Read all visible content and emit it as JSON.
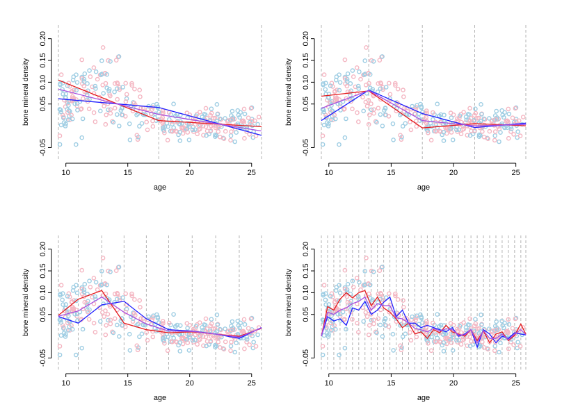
{
  "figure": {
    "layout": "2x2 grid of scatter panels with regression-spline fits",
    "point_style": "open circle",
    "colors": {
      "points_group_1": "#f4b6c2",
      "points_group_2": "#9ecde3",
      "fit_red": "#e41a1c",
      "fit_blue": "#1f1fff",
      "fit_purple": "#a84fe0",
      "knot_line": "#b3b3b3"
    },
    "xlim": [
      9.4,
      25.8
    ],
    "ylim": [
      -0.07,
      0.225
    ],
    "xticks": [
      10,
      15,
      20,
      25
    ],
    "yticks": [
      -0.05,
      0.05,
      0.1,
      0.15,
      0.2
    ],
    "xlabel": "age",
    "ylabel": "bone mineral density"
  },
  "chart_data": [
    {
      "type": "scatter",
      "panel": 1,
      "xlabel": "age",
      "ylabel": "bone mineral density",
      "knots": [
        9.4,
        17.5,
        25.8
      ],
      "series": [
        {
          "color": "red",
          "x": [
            9.4,
            17.5,
            25.8
          ],
          "y": [
            0.105,
            0.012,
            -0.002
          ]
        },
        {
          "color": "blue",
          "x": [
            9.4,
            17.5,
            25.8
          ],
          "y": [
            0.062,
            0.042,
            -0.022
          ]
        },
        {
          "color": "purple",
          "x": [
            9.4,
            17.5,
            25.8
          ],
          "y": [
            0.084,
            0.026,
            -0.012
          ]
        }
      ]
    },
    {
      "type": "scatter",
      "panel": 2,
      "xlabel": "age",
      "ylabel": "bone mineral density",
      "knots": [
        9.4,
        13.2,
        17.5,
        21.7,
        25.8
      ],
      "series": [
        {
          "color": "red",
          "x": [
            9.4,
            13.2,
            17.5,
            21.7,
            25.8
          ],
          "y": [
            0.068,
            0.08,
            -0.005,
            0.005,
            0.0
          ]
        },
        {
          "color": "blue",
          "x": [
            9.4,
            13.2,
            17.5,
            21.7,
            25.8
          ],
          "y": [
            0.012,
            0.082,
            0.028,
            -0.004,
            0.006
          ]
        },
        {
          "color": "purple",
          "x": [
            9.4,
            13.2,
            17.5,
            21.7,
            25.8
          ],
          "y": [
            0.04,
            0.081,
            0.012,
            0.0,
            0.003
          ]
        }
      ]
    },
    {
      "type": "scatter",
      "panel": 3,
      "xlabel": "age",
      "ylabel": "bone mineral density",
      "knots": [
        9.4,
        11.0,
        12.9,
        14.7,
        16.5,
        18.3,
        20.2,
        22.1,
        24.0,
        25.8
      ],
      "series": [
        {
          "color": "red",
          "x": [
            9.4,
            11.0,
            12.9,
            14.7,
            16.5,
            18.3,
            20.2,
            22.1,
            24.0,
            25.8
          ],
          "y": [
            0.048,
            0.085,
            0.105,
            0.03,
            0.015,
            0.008,
            0.01,
            0.005,
            0.0,
            0.018
          ]
        },
        {
          "color": "blue",
          "x": [
            9.4,
            11.0,
            12.9,
            14.7,
            16.5,
            18.3,
            20.2,
            22.1,
            24.0,
            25.8
          ],
          "y": [
            0.045,
            0.03,
            0.072,
            0.08,
            0.04,
            0.015,
            0.012,
            0.005,
            -0.005,
            0.02
          ]
        },
        {
          "color": "purple",
          "x": [
            9.4,
            11.0,
            12.9,
            14.7,
            16.5,
            18.3,
            20.2,
            22.1,
            24.0,
            25.8
          ],
          "y": [
            0.046,
            0.058,
            0.09,
            0.055,
            0.028,
            0.012,
            0.011,
            0.005,
            -0.002,
            0.019
          ]
        }
      ]
    },
    {
      "type": "scatter",
      "panel": 4,
      "xlabel": "age",
      "ylabel": "bone mineral density",
      "knots": [
        9.4,
        9.9,
        10.4,
        10.9,
        11.4,
        11.9,
        12.4,
        12.9,
        13.4,
        13.9,
        14.4,
        14.9,
        15.4,
        15.9,
        16.4,
        16.9,
        17.4,
        17.9,
        18.4,
        18.9,
        19.4,
        19.9,
        20.4,
        20.9,
        21.4,
        21.9,
        22.4,
        22.9,
        23.4,
        23.9,
        24.4,
        24.9,
        25.4,
        25.8
      ],
      "series": [
        {
          "color": "red",
          "x": [
            9.4,
            9.9,
            10.4,
            10.9,
            11.4,
            11.9,
            12.4,
            12.9,
            13.4,
            13.9,
            14.4,
            14.9,
            15.4,
            15.9,
            16.4,
            16.9,
            17.4,
            17.9,
            18.4,
            18.9,
            19.4,
            19.9,
            20.4,
            20.9,
            21.4,
            21.9,
            22.4,
            22.9,
            23.4,
            23.9,
            24.4,
            24.9,
            25.4,
            25.8
          ],
          "y": [
            0.0,
            0.068,
            0.06,
            0.085,
            0.1,
            0.088,
            0.1,
            0.105,
            0.07,
            0.09,
            0.065,
            0.055,
            0.04,
            0.02,
            0.03,
            0.005,
            0.01,
            -0.005,
            0.015,
            0.008,
            0.025,
            0.01,
            0.005,
            0.0,
            0.015,
            -0.01,
            0.012,
            -0.015,
            0.005,
            0.01,
            -0.01,
            0.002,
            0.028,
            0.005
          ]
        },
        {
          "color": "blue",
          "x": [
            9.4,
            9.9,
            10.4,
            10.9,
            11.4,
            11.9,
            12.4,
            12.9,
            13.4,
            13.9,
            14.4,
            14.9,
            15.4,
            15.9,
            16.4,
            16.9,
            17.4,
            17.9,
            18.4,
            18.9,
            19.4,
            19.9,
            20.4,
            20.9,
            21.4,
            21.9,
            22.4,
            22.9,
            23.4,
            23.9,
            24.4,
            24.9,
            25.4,
            25.8
          ],
          "y": [
            0.0,
            0.045,
            0.035,
            0.04,
            0.025,
            0.065,
            0.06,
            0.08,
            0.05,
            0.06,
            0.078,
            0.09,
            0.045,
            0.06,
            0.03,
            0.03,
            0.02,
            0.025,
            0.02,
            0.015,
            0.01,
            0.02,
            0.0,
            0.005,
            0.015,
            -0.025,
            0.015,
            0.005,
            -0.015,
            0.0,
            -0.005,
            0.008,
            0.005,
            0.003
          ]
        },
        {
          "color": "purple",
          "x": [
            9.4,
            9.9,
            10.4,
            10.9,
            11.4,
            11.9,
            12.4,
            12.9,
            13.4,
            13.9,
            14.4,
            14.9,
            15.4,
            15.9,
            16.4,
            16.9,
            17.4,
            17.9,
            18.4,
            18.9,
            19.4,
            19.9,
            20.4,
            20.9,
            21.4,
            21.9,
            22.4,
            22.9,
            23.4,
            23.9,
            24.4,
            24.9,
            25.4,
            25.8
          ],
          "y": [
            0.0,
            0.055,
            0.05,
            0.06,
            0.065,
            0.075,
            0.08,
            0.09,
            0.06,
            0.075,
            0.07,
            0.07,
            0.042,
            0.04,
            0.03,
            0.018,
            0.015,
            0.01,
            0.018,
            0.012,
            0.017,
            0.015,
            0.003,
            0.003,
            0.015,
            -0.015,
            0.013,
            -0.005,
            -0.005,
            0.005,
            -0.008,
            0.005,
            0.015,
            0.004
          ]
        }
      ]
    }
  ]
}
